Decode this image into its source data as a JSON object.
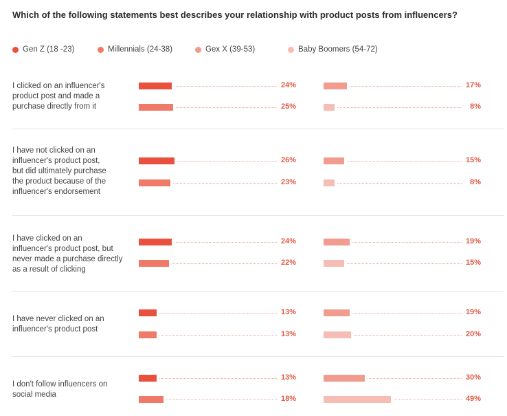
{
  "title": "Which of the following statements best describes your relationship with product posts from influencers?",
  "colors": {
    "gen_z": "#e9503d",
    "millennials": "#f07a68",
    "gen_x": "#f19c8e",
    "boomers": "#f6bdb4",
    "value_text": "#e05a44"
  },
  "chart_data": {
    "type": "bar",
    "orientation": "horizontal",
    "title": "Which of the following statements best describes your relationship with product posts from influencers?",
    "legend_position": "top",
    "unit": "%",
    "series": [
      {
        "name": "Gen Z (18 -23)",
        "color_key": "gen_z"
      },
      {
        "name": "Millennials (24-38)",
        "color_key": "millennials"
      },
      {
        "name": "Gex X (39-53)",
        "color_key": "gen_x"
      },
      {
        "name": "Baby Boomers (54-72)",
        "color_key": "boomers"
      }
    ],
    "categories": [
      "I clicked on an influencer's product post and made a purchase directly from it",
      "I have not clicked on an influencer's product post, but did ultimately purchase the product because of the influencer's endorsement",
      "I have clicked on an influencer's product post, but never made a purchase directly as a result of clicking",
      "I have never clicked on an influencer's product post",
      "I don't follow influencers on social media"
    ],
    "values": {
      "gen_z": [
        24,
        26,
        24,
        13,
        13
      ],
      "millennials": [
        25,
        23,
        22,
        13,
        18
      ],
      "gen_x": [
        17,
        15,
        19,
        19,
        30
      ],
      "boomers": [
        8,
        8,
        15,
        20,
        49
      ]
    },
    "labels": {
      "gen_z": [
        "24%",
        "26%",
        "24%",
        "13%",
        "13%"
      ],
      "millennials": [
        "25%",
        "23%",
        "22%",
        "13%",
        "18%"
      ],
      "gen_x": [
        "17%",
        "15%",
        "19%",
        "19%",
        "30%"
      ],
      "boomers": [
        "8%",
        "8%",
        "15%",
        "20%",
        "49%"
      ]
    },
    "rows": [
      {
        "label_lines": [
          "I clicked on an influencer's",
          "product post and made a",
          "purchase directly from it"
        ]
      },
      {
        "label_lines": [
          "I have not clicked on an",
          "influencer's product post,",
          "but did ultimately purchase",
          "the product because of the",
          "influencer's endorsement"
        ]
      },
      {
        "label_lines": [
          "I have clicked on an",
          "influencer's product post, but",
          "never made a purchase directly",
          "as a result of clicking"
        ]
      },
      {
        "label_lines": [
          "I have never clicked on an",
          "influencer's product post"
        ]
      },
      {
        "label_lines": [
          "I don't follow influencers on",
          "social media"
        ]
      }
    ]
  }
}
